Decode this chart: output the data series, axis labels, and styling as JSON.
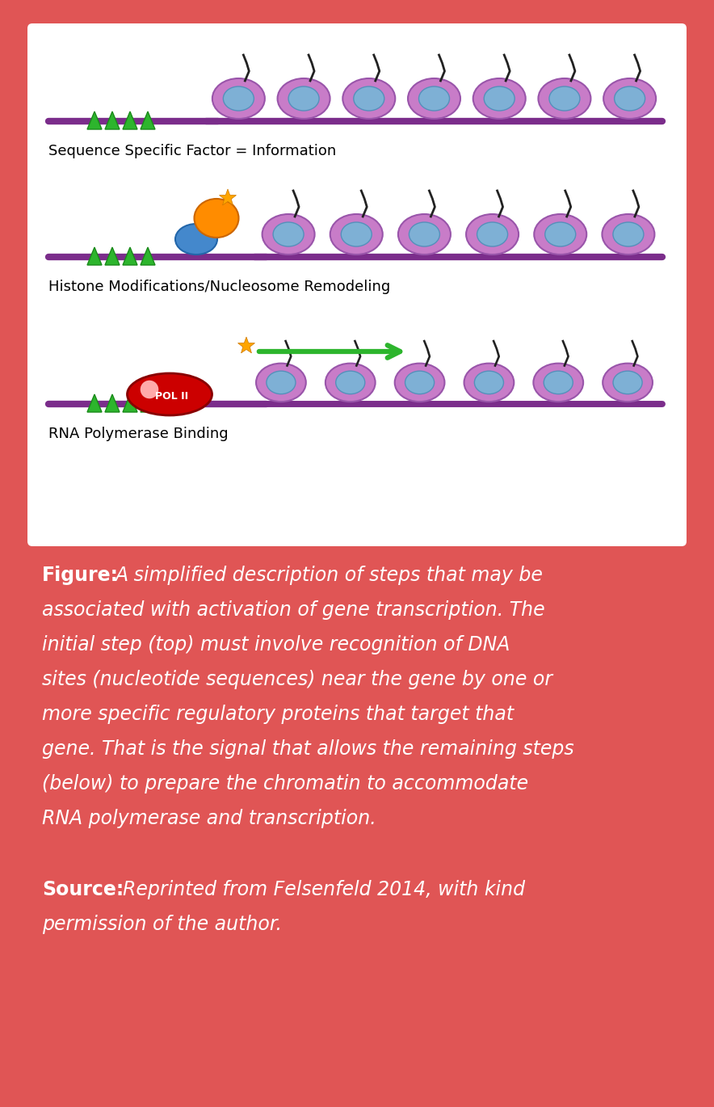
{
  "background_color": "#E05555",
  "text_color": "#ffffff",
  "label1": "Sequence Specific Factor = Information",
  "label2": "Histone Modifications/Nucleosome Remodeling",
  "label3": "RNA Polymerase Binding",
  "dna_color": "#7B2D8B",
  "nucleosome_outer_color": "#C87CC8",
  "nucleosome_inner_color": "#7EB0D5",
  "triangle_color": "#2DB52D",
  "arrow_color": "#2DB52D",
  "pol_color": "#CC0000",
  "star_color": "#FFA500",
  "blue_oval_color": "#4488CC",
  "orange_shape_color": "#FF8C00",
  "figure_bold": "Figure:",
  "figure_italic": " A simplified description of steps that may be associated with activation of gene transcription. The initial step (top) must involve recognition of DNA sites (nucleotide sequences) near the gene by one or more specific regulatory proteins that target that gene. That is the signal that allows the remaining steps (below) to prepare the chromatin to accommodate RNA polymerase and transcription.",
  "source_bold": "Source:",
  "source_italic": " Reprinted from Felsenfeld 2014, with kind permission of the author.",
  "figure_lines": [
    "A simplified description of steps that may be",
    "associated with activation of gene transcription. The",
    "initial step (top) must involve recognition of DNA",
    "sites (nucleotide sequences) near the gene by one or",
    "more specific regulatory proteins that target that",
    "gene. That is the signal that allows the remaining steps",
    "(below) to prepare the chromatin to accommodate",
    "RNA polymerase and transcription."
  ],
  "source_lines": [
    "Reprinted from Felsenfeld 2014, with kind",
    "permission of the author."
  ]
}
